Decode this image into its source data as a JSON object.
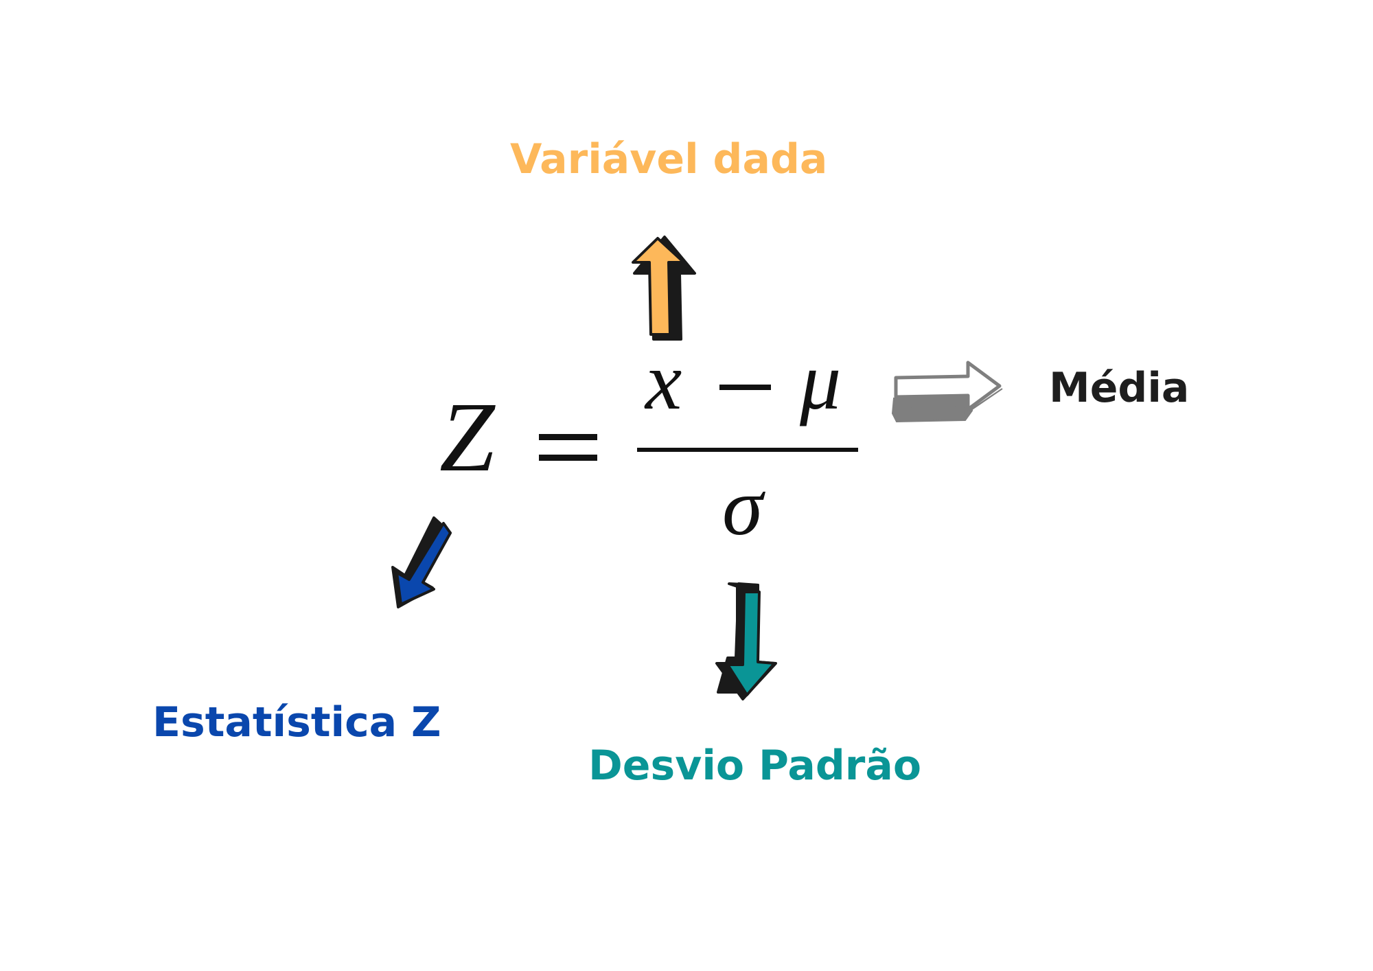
{
  "formula": {
    "lhs": "Z",
    "equals": "=",
    "numerator_x": "x",
    "numerator_minus": "−",
    "numerator_mu": "μ",
    "denominator": "σ"
  },
  "labels": {
    "variable": "Variável dada",
    "mean": "Média",
    "z_statistic": "Estatística Z",
    "std_dev": "Desvio Padrão"
  },
  "colors": {
    "variable": "#fdb85a",
    "mean": "#1e1e1e",
    "z_statistic": "#0a47ad",
    "std_dev": "#0a9596",
    "mean_arrow": "#7f7f7f",
    "outline": "#1a1a1a"
  }
}
